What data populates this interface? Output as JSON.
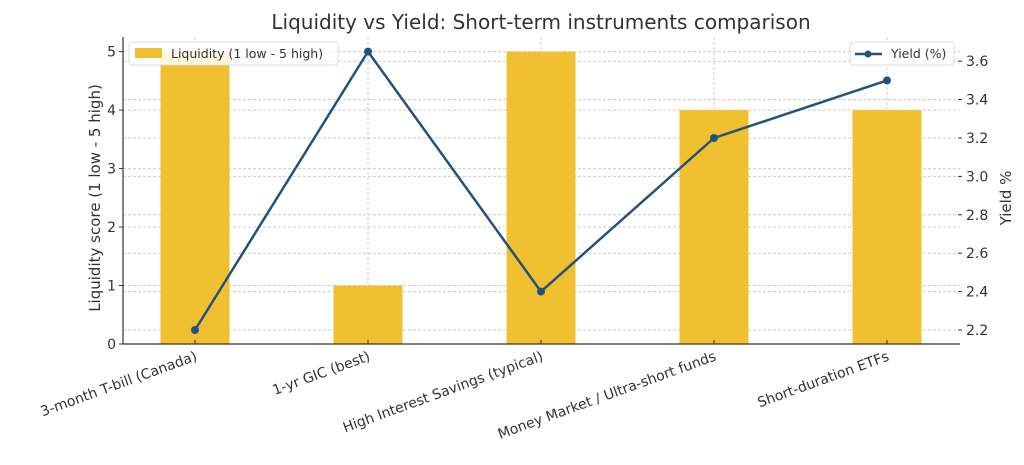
{
  "chart_data": {
    "type": "bar",
    "combo": "bar + line (dual axis)",
    "title": "Liquidity vs Yield: Short-term instruments comparison",
    "categories": [
      "3-month T-bill (Canada)",
      "1-yr GIC (best)",
      "High Interest Savings (typical)",
      "Money Market / Ultra-short funds",
      "Short-duration ETFs"
    ],
    "series": [
      {
        "name": "Liquidity (1 low - 5 high)",
        "type": "bar",
        "axis": "left",
        "color": "#F0C030",
        "values": [
          5,
          1,
          5,
          4,
          4
        ]
      },
      {
        "name": "Yield (%)",
        "type": "line",
        "axis": "right",
        "color": "#23527C",
        "marker": "circle",
        "values": [
          2.2,
          3.65,
          2.4,
          3.2,
          3.5
        ]
      }
    ],
    "xlabel": "",
    "ylabel": "Liquidity score (1 low - 5 high)",
    "ylabel_right": "Yield %",
    "ylim": [
      0,
      5.25
    ],
    "ylim_right": [
      2.13,
      3.72
    ],
    "yticks": [
      "0",
      "1",
      "2",
      "3",
      "4",
      "5"
    ],
    "yticks_right": [
      "2.2",
      "2.4",
      "2.6",
      "2.8",
      "3.0",
      "3.2",
      "3.4",
      "3.6"
    ],
    "grid": true,
    "legend": [
      {
        "label": "Liquidity (1 low - 5 high)",
        "position": "upper left"
      },
      {
        "label": "Yield (%)",
        "position": "upper right"
      }
    ]
  }
}
